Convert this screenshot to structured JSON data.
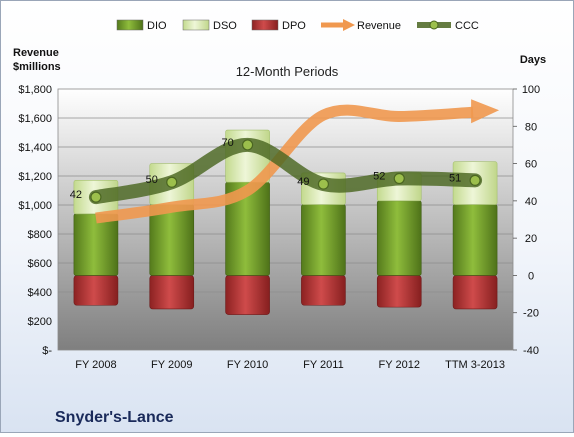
{
  "chart_data": {
    "type": "bar",
    "title": "12-Month Periods",
    "company": "Snyder's-Lance",
    "left_axis_label_line1": "Revenue",
    "left_axis_label_line2": "$millions",
    "right_axis_label": "Days",
    "categories": [
      "FY 2008",
      "FY 2009",
      "FY 2010",
      "FY 2011",
      "FY 2012",
      "TTM 3-2013"
    ],
    "left_axis": {
      "min": 0,
      "max": 1800,
      "step": 200,
      "ticks": [
        "$-",
        "$200",
        "$400",
        "$600",
        "$800",
        "$1,000",
        "$1,200",
        "$1,400",
        "$1,600",
        "$1,800"
      ]
    },
    "right_axis": {
      "min": -40,
      "max": 100,
      "step": 20,
      "ticks": [
        "-40",
        "-20",
        "0",
        "20",
        "40",
        "60",
        "80",
        "100"
      ]
    },
    "grid": true,
    "legend_position": "top",
    "legend": [
      "DIO",
      "DSO",
      "DPO",
      "Revenue",
      "CCC"
    ],
    "series": [
      {
        "name": "DIO",
        "axis": "days",
        "kind": "stacked-bar",
        "color": "#6f9a2a",
        "values": [
          33,
          38,
          50,
          38,
          40,
          38
        ]
      },
      {
        "name": "DSO",
        "axis": "days",
        "kind": "stacked-bar",
        "color": "#dcebb4",
        "values": [
          18,
          22,
          28,
          17,
          15,
          23
        ]
      },
      {
        "name": "DPO",
        "axis": "days",
        "kind": "bar-below-zero",
        "color": "#b53a3a",
        "values": [
          -16,
          -18,
          -21,
          -16,
          -17,
          -18
        ]
      },
      {
        "name": "Revenue",
        "axis": "revenue",
        "kind": "arrow-line",
        "color": "#f0984f",
        "values": [
          910,
          985,
          1100,
          1620,
          1610,
          1640
        ]
      },
      {
        "name": "CCC",
        "axis": "days",
        "kind": "line",
        "color": "#4b6621",
        "values": [
          42,
          50,
          70,
          49,
          52,
          51
        ],
        "labels": [
          "42",
          "50",
          "70",
          "49",
          "52",
          "51"
        ]
      }
    ]
  }
}
